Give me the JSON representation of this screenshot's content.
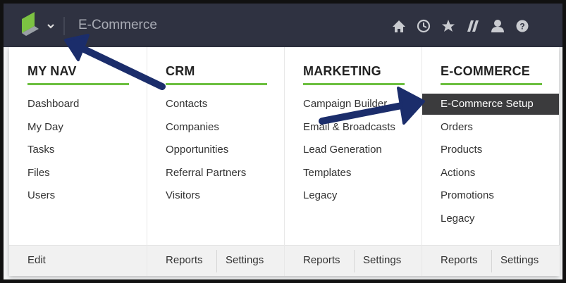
{
  "top_bar": {
    "title": "E-Commerce"
  },
  "menu": {
    "columns": [
      {
        "title": "MY NAV",
        "items": [
          "Dashboard",
          "My Day",
          "Tasks",
          "Files",
          "Users"
        ],
        "footer": [
          "Edit"
        ]
      },
      {
        "title": "CRM",
        "items": [
          "Contacts",
          "Companies",
          "Opportunities",
          "Referral Partners",
          "Visitors"
        ],
        "footer": [
          "Reports",
          "Settings"
        ]
      },
      {
        "title": "MARKETING",
        "items": [
          "Campaign Builder",
          "Email & Broadcasts",
          "Lead Generation",
          "Templates",
          "Legacy"
        ],
        "footer": [
          "Reports",
          "Settings"
        ]
      },
      {
        "title": "E-COMMERCE",
        "items": [
          "E-Commerce Setup",
          "Orders",
          "Products",
          "Actions",
          "Promotions",
          "Legacy"
        ],
        "footer": [
          "Reports",
          "Settings"
        ],
        "selected_item": 0
      }
    ]
  }
}
